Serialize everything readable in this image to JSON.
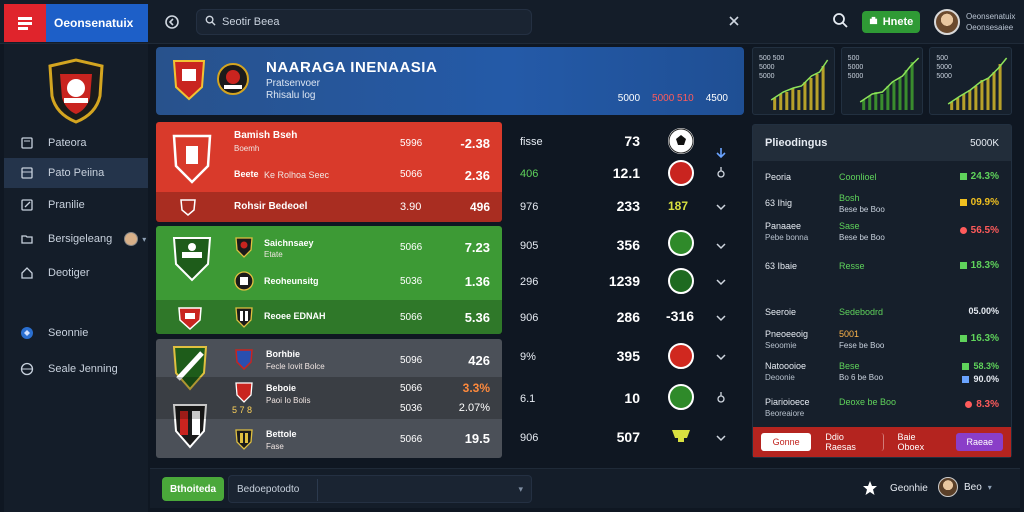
{
  "topbar": {
    "brand_name": "Oeonsenatuix",
    "search_placeholder": "Seotir Beea",
    "home_label": "Hnete",
    "user_name": "Oeonsenatuix",
    "user_sub": "Oeonsesaiee"
  },
  "sidebar": {
    "items": [
      {
        "label": "Pateora"
      },
      {
        "label": "Pato Peiina"
      },
      {
        "label": "Pranilie"
      },
      {
        "label": "Bersigeleang"
      },
      {
        "label": "Deotiger"
      },
      {
        "label": "Seonnie"
      },
      {
        "label": "Seale Jenning"
      }
    ]
  },
  "hero": {
    "title": "NAARAGA INENAASIA",
    "sub1": "Pratsenvoer",
    "sub2": "Rhisalu log",
    "stats": [
      "5000",
      "5000 510",
      "4500"
    ]
  },
  "mini_charts": [
    {
      "label": "500 500\n5000\n5000"
    },
    {
      "label": "500\n5000\n5000"
    },
    {
      "label": "500\n5000\n5000"
    }
  ],
  "groups": {
    "red": [
      {
        "name": "Bamish Bseh",
        "sub": "Boemh",
        "mid": "5996",
        "val": "-2.38"
      },
      {
        "name": "Beete",
        "sub": "Ke Rolhoa Seec",
        "mid": "5066",
        "val": "2.36"
      },
      {
        "name": "Rohsir Bedeoel",
        "sub": "",
        "mid": "3.90",
        "val": "496"
      }
    ],
    "green": [
      {
        "name": "Saichnsaey",
        "sub": "Etate",
        "mid": "5066",
        "val": "7.23"
      },
      {
        "name": "Reoheunsitg",
        "sub": "",
        "mid": "5036",
        "val": "1.36"
      },
      {
        "name": "Reoee EDNAH",
        "sub": "",
        "mid": "5066",
        "val": "5.36"
      }
    ],
    "gray": [
      {
        "name": "Borhbie",
        "sub": "Fecle Iovit Bolce",
        "mid": "5096",
        "val": "426",
        "orange": false
      },
      {
        "name": "Beboie",
        "sub": "Paoi Io Bolis",
        "mid": "5066",
        "val": "3.3%",
        "orange": true,
        "sub2": "5036",
        "val2": "2.07%"
      },
      {
        "name": "Bettole",
        "sub": "Fase",
        "mid": "5066",
        "val": "19.5",
        "orange": false
      }
    ],
    "gray_extra": "5 7 8"
  },
  "columns": [
    {
      "a": "fisse",
      "b": "73",
      "green": false
    },
    {
      "a": "406",
      "b": "12.1",
      "green": true
    },
    {
      "a": "976",
      "b": "233",
      "green": false
    },
    {
      "a": "905",
      "b": "356",
      "green": false
    },
    {
      "a": "296",
      "b": "1239",
      "green": false
    },
    {
      "a": "906",
      "b": "286",
      "green": false
    },
    {
      "a": "9%",
      "b": "395",
      "green": false
    },
    {
      "a": "6.1",
      "b": "10",
      "green": false
    },
    {
      "a": "906",
      "b": "507",
      "green": false
    }
  ],
  "column_marks": [
    "187",
    "-316"
  ],
  "standings": {
    "title": "Plieodingus",
    "value": "5000K",
    "rows": [
      {
        "name": "Peoria",
        "sub": "",
        "g": "Coonlioel",
        "g2": "",
        "r": "24.3%",
        "color": "#5fd35b"
      },
      {
        "name": "63 Ihig",
        "sub": "",
        "g": "Bosh",
        "g2": "Bese be Boo",
        "r": "09.9%",
        "color": "#f0c020"
      },
      {
        "name": "Panaaee",
        "sub": "Pebe bonna",
        "g": "Sase",
        "g2": "Bese be Boo",
        "r": "56.5%",
        "color": "#ff5b5b"
      },
      {
        "name": "63 Ibaie",
        "sub": "",
        "g": "Resse",
        "g2": "",
        "r": "18.3%",
        "color": "#5fd35b"
      },
      {
        "name": "Seeroie",
        "sub": "",
        "g": "Sedebodrd",
        "g2": "",
        "r": "05.00%",
        "color": "#ff5b5b"
      },
      {
        "name": "Pneoeeoig",
        "sub": "Seoomie",
        "g": "5001",
        "g2": "Fese be Boo",
        "r": "16.3%",
        "color": "#5fd35b"
      },
      {
        "name": "Natoooioe",
        "sub": "Deoonie",
        "g": "Bese",
        "g2": "Bo 6 be Boo",
        "r": "58.3%",
        "color": "#5fd35b",
        "r2": "90.0%"
      },
      {
        "name": "Piarioioece",
        "sub": "Beoreaiore",
        "g": "Deoxe be Boo",
        "g2": "",
        "r": "8.3%",
        "color": "#ff5b5b"
      }
    ],
    "footer": [
      "Gonne",
      "Ddio Raesas",
      "Baie Oboex",
      "Raeae"
    ]
  },
  "bottombar": {
    "green_label": "Bthoiteda",
    "select_value": "Bedoepotodto",
    "star_label": "Geonhie",
    "user_label": "Beo"
  },
  "colors": {
    "accent_blue": "#1d5fc8",
    "red_group": "#d93a2b",
    "green_group": "#3d9a35",
    "gray_group": "#4b5058"
  }
}
